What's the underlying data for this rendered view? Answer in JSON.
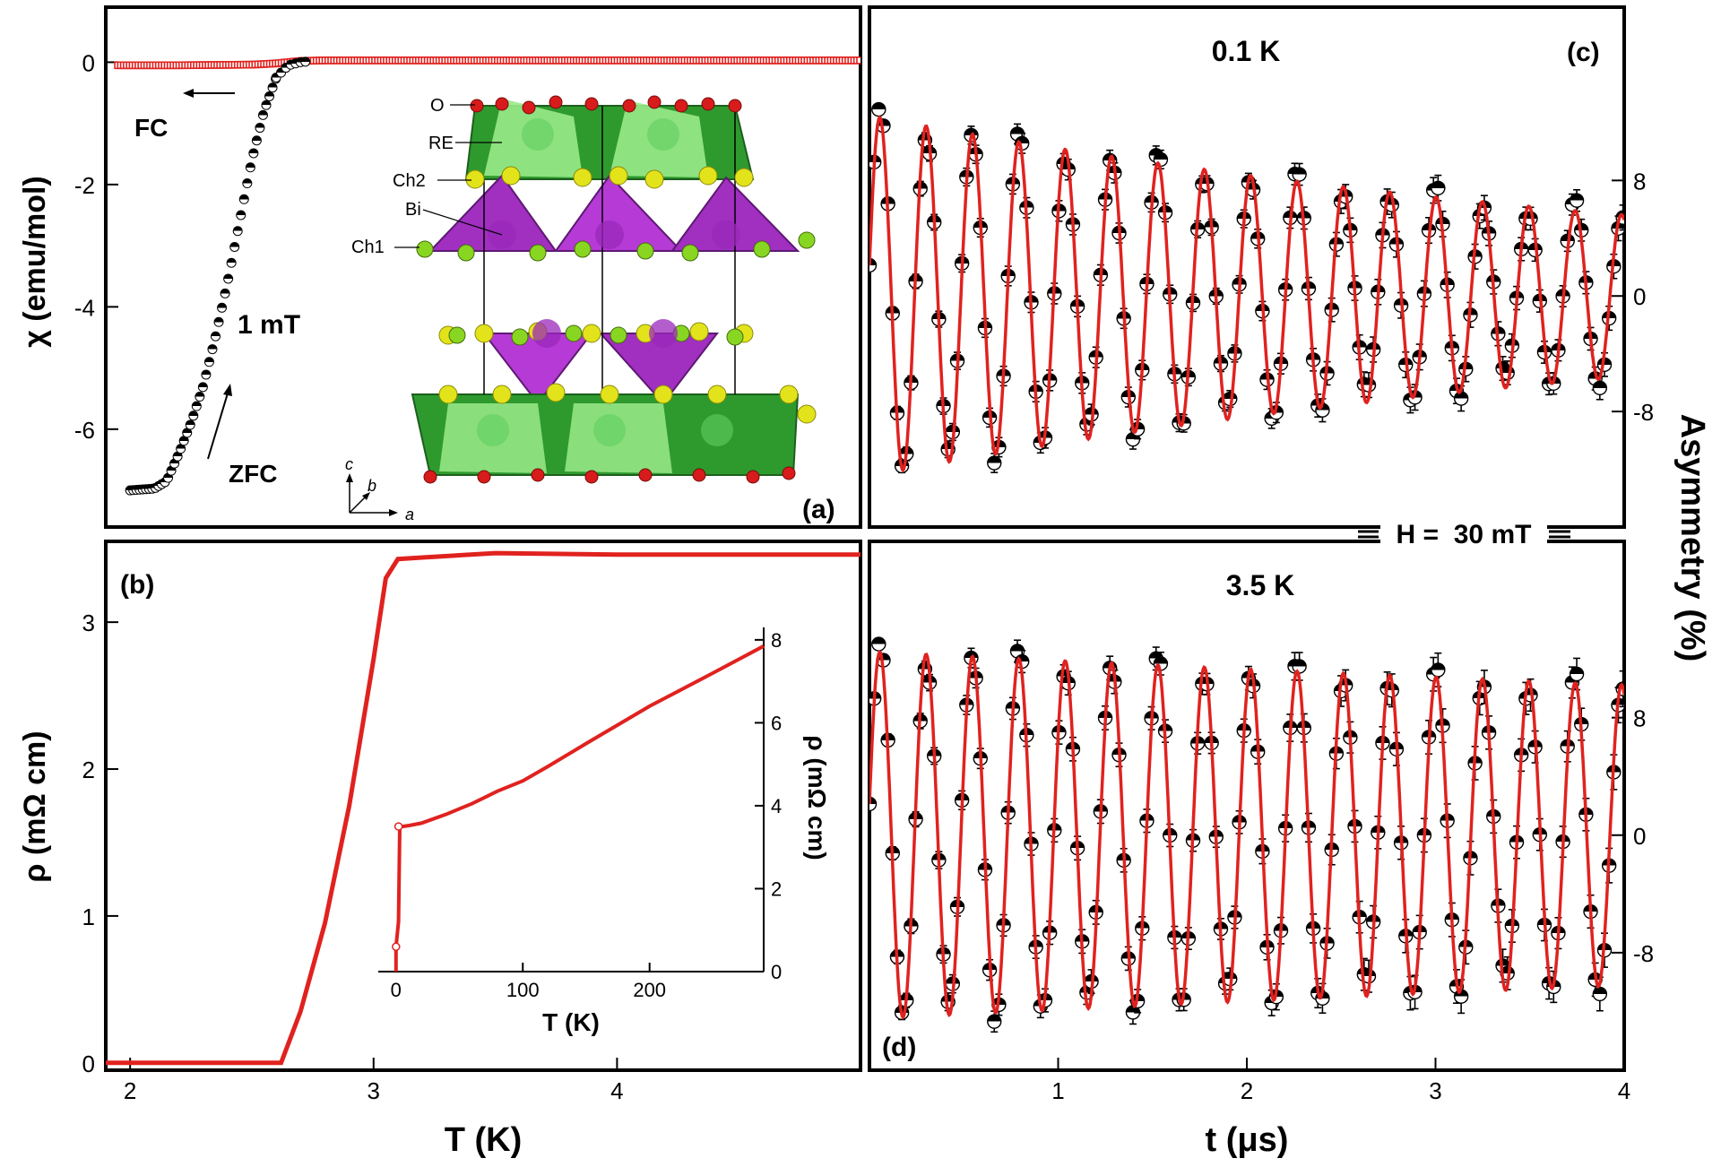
{
  "figure": {
    "field_label": "H =  30 mT",
    "shared_xlabel_left": "T (K)",
    "shared_xlabel_right": "t (μs)",
    "shared_ylabel_right": "Asymmetry (%)"
  },
  "chart_data": [
    {
      "panel": "(a)",
      "type": "scatter",
      "ylabel": "χ (emu/mol)",
      "xlim": [
        1.9,
        5.0
      ],
      "ylim": [
        -7.6,
        0.9
      ],
      "yticks": [
        0,
        -2,
        -4,
        -6
      ],
      "annotations": {
        "fc": "FC",
        "zfc": "ZFC",
        "field": "1 mT"
      },
      "series": [
        {
          "name": "FC",
          "x": [
            1.9,
            2.2,
            2.5,
            2.6,
            2.65,
            2.7,
            2.8,
            3.0,
            3.5,
            4.0,
            4.5,
            5.0
          ],
          "y": [
            -0.05,
            -0.05,
            -0.04,
            -0.02,
            0.0,
            0.02,
            0.03,
            0.03,
            0.03,
            0.03,
            0.03,
            0.03
          ]
        },
        {
          "name": "ZFC",
          "x": [
            1.9,
            2.0,
            2.1,
            2.15,
            2.2,
            2.25,
            2.3,
            2.35,
            2.4,
            2.45,
            2.5,
            2.55,
            2.6,
            2.65,
            2.7,
            2.75,
            2.8,
            3.0,
            3.5,
            4.0,
            4.5,
            5.0
          ],
          "y": [
            -7.0,
            -7.0,
            -6.97,
            -6.85,
            -6.4,
            -5.9,
            -5.3,
            -4.5,
            -3.6,
            -2.6,
            -1.6,
            -0.8,
            -0.25,
            -0.05,
            0.0,
            0.02,
            0.03,
            0.03,
            0.03,
            0.03,
            0.03,
            0.03
          ]
        }
      ],
      "inset_structure": {
        "labels": [
          "O",
          "RE",
          "Ch2",
          "Bi",
          "Ch1"
        ],
        "axes": [
          "c",
          "b",
          "a"
        ]
      }
    },
    {
      "panel": "(b)",
      "type": "line",
      "xlabel": "T (K)",
      "ylabel": "ρ (mΩ cm)",
      "xlim": [
        1.9,
        5.0
      ],
      "ylim": [
        -0.05,
        3.55
      ],
      "xticks": [
        2,
        3,
        4
      ],
      "yticks": [
        0,
        1,
        2,
        3
      ],
      "series": [
        {
          "name": "rho",
          "x": [
            1.9,
            2.3,
            2.62,
            2.7,
            2.8,
            2.9,
            3.0,
            3.05,
            3.1,
            3.2,
            3.5,
            4.0,
            4.5,
            5.0
          ],
          "y": [
            0.0,
            0.0,
            0.0,
            0.35,
            0.95,
            1.75,
            2.75,
            3.3,
            3.43,
            3.44,
            3.47,
            3.46,
            3.46,
            3.46
          ]
        }
      ],
      "inset": {
        "type": "line",
        "xlabel": "T (K)",
        "ylabel": "ρ (mΩ cm)",
        "xlim": [
          -14,
          290
        ],
        "ylim": [
          0,
          8.3
        ],
        "xticks": [
          0,
          100,
          200
        ],
        "yticks": [
          0,
          2,
          4,
          6,
          8
        ],
        "x": [
          0,
          0,
          2,
          3,
          5,
          10,
          20,
          40,
          60,
          80,
          100,
          120,
          150,
          200,
          250,
          290
        ],
        "y": [
          0.0,
          0.6,
          1.2,
          3.5,
          3.5,
          3.52,
          3.58,
          3.8,
          4.05,
          4.35,
          4.6,
          4.95,
          5.5,
          6.4,
          7.2,
          7.85
        ]
      }
    },
    {
      "panel": "(c)",
      "type": "scatter",
      "temperature_label": "0.1 K",
      "xlim": [
        0,
        4
      ],
      "ylim": [
        -16,
        20
      ],
      "yticks": [
        8,
        0,
        -8
      ],
      "model": {
        "amplitude": 12.5,
        "decay": 0.2,
        "frequency_MHz": 4.07,
        "phase": -1.4
      }
    },
    {
      "panel": "(d)",
      "type": "scatter",
      "temperature_label": "3.5 K",
      "xlabel": "t (μs)",
      "xlim": [
        0,
        4
      ],
      "ylim": [
        -16,
        20
      ],
      "xticks": [
        1,
        2,
        3,
        4
      ],
      "yticks": [
        8,
        0,
        -8
      ],
      "model": {
        "amplitude": 12.5,
        "decay": 0.05,
        "frequency_MHz": 4.07,
        "phase": -1.4
      }
    }
  ]
}
